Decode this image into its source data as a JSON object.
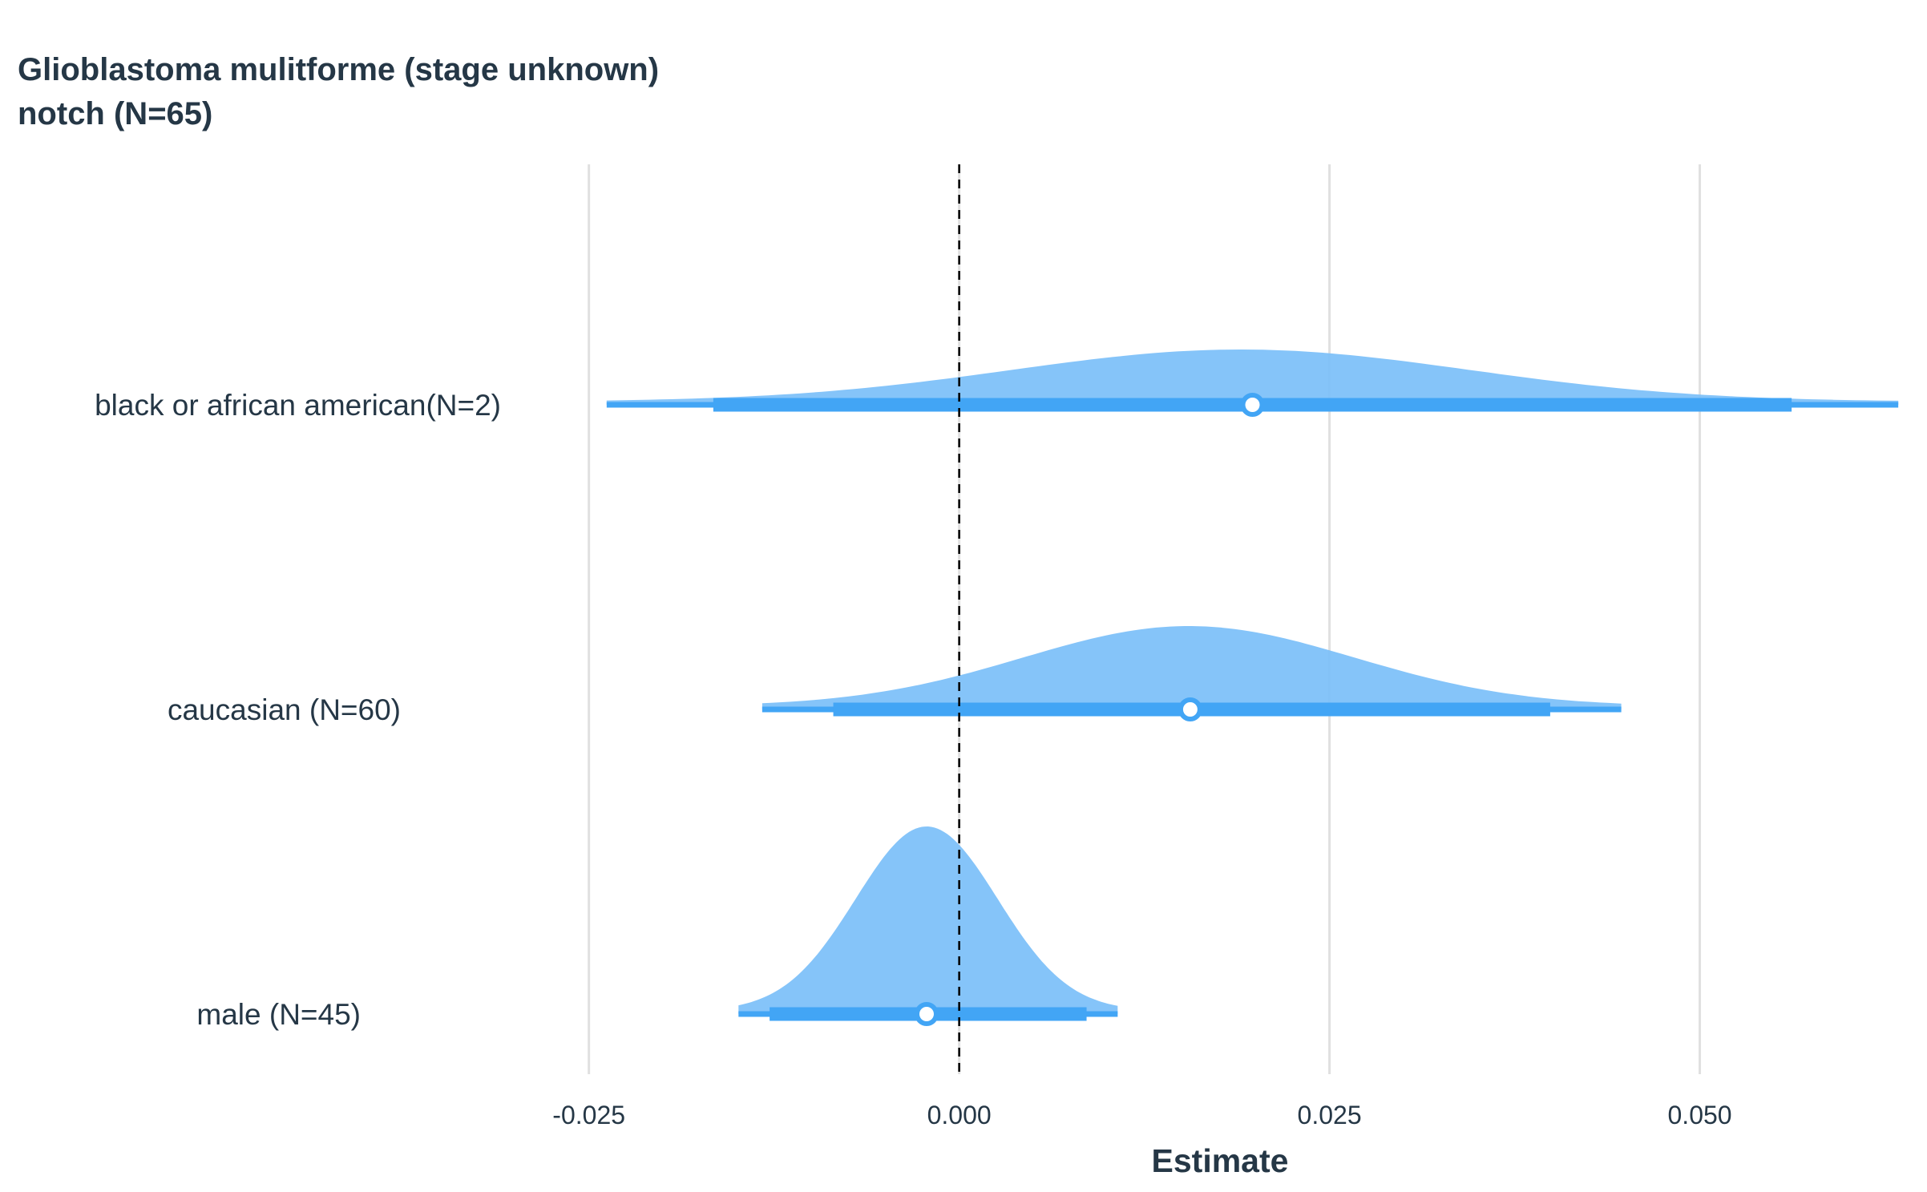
{
  "chart_data": {
    "type": "forest-halfeye",
    "title_lines": [
      "Glioblastoma mulitforme (stage unknown)",
      "notch (N=65)"
    ],
    "xlabel": "Estimate",
    "ylabel": "",
    "xlim": [
      -0.0285,
      0.0635
    ],
    "xticks": [
      -0.025,
      0.0,
      0.025,
      0.05
    ],
    "xtick_labels": [
      "-0.025",
      "0.000",
      "0.025",
      "0.050"
    ],
    "reference_line": 0.0,
    "grid": "vertical major gridlines",
    "colors": {
      "density_fill": "#7bbff8",
      "interval": "#42a5f5",
      "point_fill": "#ffffff",
      "text": "#253746",
      "grid": "#e0e0e0",
      "reference": "#000000"
    },
    "rows": [
      {
        "label": "black or african american(N=2)",
        "estimate": 0.0198,
        "ci_low": -0.0166,
        "ci_high": 0.0562,
        "range_low": -0.0238,
        "range_high": 0.0634,
        "density_mean": 0.019,
        "density_sd": 0.0155
      },
      {
        "label": "caucasian (N=60)",
        "estimate": 0.0156,
        "ci_low": -0.0085,
        "ci_high": 0.0399,
        "range_low": -0.0133,
        "range_high": 0.0447,
        "density_mean": 0.0155,
        "density_sd": 0.0112
      },
      {
        "label": "male (N=45)",
        "estimate": -0.0022,
        "ci_low": -0.0128,
        "ci_high": 0.0086,
        "range_low": -0.0149,
        "range_high": 0.0107,
        "density_mean": -0.0022,
        "density_sd": 0.0048
      }
    ]
  }
}
